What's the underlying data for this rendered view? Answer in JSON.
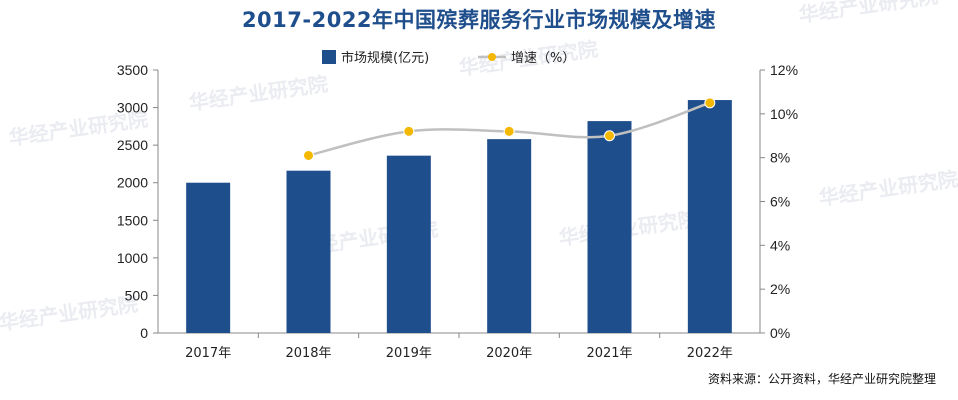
{
  "title": "2017-2022年中国殡葬服务行业市场规模及增速",
  "source": "资料来源：公开资料，华经产业研究院整理",
  "watermark": "华经产业研究院",
  "colors": {
    "bar": "#1f4e8c",
    "line": "#c0c0c0",
    "marker": "#f5b800",
    "title": "#1f4e8c"
  },
  "chart_data": {
    "type": "bar",
    "categories": [
      "2017年",
      "2018年",
      "2019年",
      "2020年",
      "2021年",
      "2022年"
    ],
    "series": [
      {
        "name": "市场规模(亿元)",
        "type": "bar",
        "axis": "left",
        "values": [
          2000,
          2160,
          2360,
          2580,
          2820,
          3100
        ]
      },
      {
        "name": "增速（%）",
        "type": "line",
        "axis": "right",
        "values": [
          null,
          8.1,
          9.2,
          9.2,
          9.0,
          10.5
        ]
      }
    ],
    "y_left": {
      "min": 0,
      "max": 3500,
      "ticks": [
        "0",
        "500",
        "1000",
        "1500",
        "2000",
        "2500",
        "3000",
        "3500"
      ]
    },
    "y_right": {
      "min": 0,
      "max": 12,
      "ticks": [
        "0%",
        "2%",
        "4%",
        "6%",
        "8%",
        "10%",
        "12%"
      ]
    },
    "legend": "top-center",
    "grid": false
  }
}
